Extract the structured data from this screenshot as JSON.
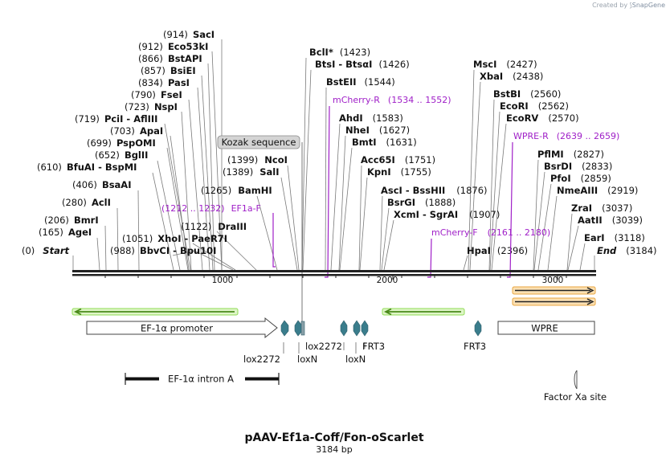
{
  "credit": {
    "prefix": "Created by",
    "brand": "SnapGene"
  },
  "plasmid": {
    "name": "pAAV-Ef1a-Coff/Fon-oScarlet",
    "length_label": "3184 bp"
  },
  "axis": {
    "ticks": [
      "1000",
      "2000",
      "3000"
    ]
  },
  "enzymes": [
    {
      "pos": "(0)",
      "name": "Start"
    },
    {
      "pos": "(165)",
      "name": "AgeI"
    },
    {
      "pos": "(206)",
      "name": "BmrI"
    },
    {
      "pos": "(280)",
      "name": "AclI"
    },
    {
      "pos": "(406)",
      "name": "BsaAI"
    },
    {
      "pos": "(610)",
      "name": "BfuAI",
      "name2": "BspMI"
    },
    {
      "pos": "(652)",
      "name": "BglII"
    },
    {
      "pos": "(699)",
      "name": "PspOMI"
    },
    {
      "pos": "(703)",
      "name": "ApaI"
    },
    {
      "pos": "(719)",
      "name": "PciI",
      "name2": "AflIII"
    },
    {
      "pos": "(723)",
      "name": "NspI"
    },
    {
      "pos": "(790)",
      "name": "FseI"
    },
    {
      "pos": "(834)",
      "name": "PasI"
    },
    {
      "pos": "(857)",
      "name": "BsiEI"
    },
    {
      "pos": "(866)",
      "name": "BstAPI"
    },
    {
      "pos": "(912)",
      "name": "Eco53kI"
    },
    {
      "pos": "(914)",
      "name": "SacI"
    },
    {
      "pos": "(988)",
      "name": "BbvCI",
      "name2": "Bpu10I"
    },
    {
      "pos": "(1051)",
      "name": "XhoI",
      "name2": "PaeR7I"
    },
    {
      "pos": "(1122)",
      "name": "DraIII"
    },
    {
      "pos": "(1265)",
      "name": "BamHI"
    },
    {
      "pos": "(1389)",
      "name": "SalI"
    },
    {
      "pos": "(1399)",
      "name": "NcoI"
    },
    {
      "pos": "(1423)",
      "name": "BclI",
      "mark": "*"
    },
    {
      "pos": "(1426)",
      "name": "BtsI",
      "name2": "BtsαI"
    },
    {
      "pos": "(1544)",
      "name": "BstEII"
    },
    {
      "pos": "(1583)",
      "name": "AhdI"
    },
    {
      "pos": "(1627)",
      "name": "NheI"
    },
    {
      "pos": "(1631)",
      "name": "BmtI"
    },
    {
      "pos": "(1751)",
      "name": "Acc65I"
    },
    {
      "pos": "(1755)",
      "name": "KpnI"
    },
    {
      "pos": "(1876)",
      "name": "AscI",
      "name2": "BssHII"
    },
    {
      "pos": "(1888)",
      "name": "BsrGI"
    },
    {
      "pos": "(1907)",
      "name": "XcmI",
      "name2": "SgrAI"
    },
    {
      "pos": "(2396)",
      "name": "HpaI"
    },
    {
      "pos": "(2427)",
      "name": "MscI"
    },
    {
      "pos": "(2438)",
      "name": "XbaI"
    },
    {
      "pos": "(2560)",
      "name": "BstBI"
    },
    {
      "pos": "(2562)",
      "name": "EcoRI"
    },
    {
      "pos": "(2570)",
      "name": "EcoRV"
    },
    {
      "pos": "(2827)",
      "name": "PflMI"
    },
    {
      "pos": "(2833)",
      "name": "BsrDI"
    },
    {
      "pos": "(2859)",
      "name": "PfoI"
    },
    {
      "pos": "(2919)",
      "name": "NmeAIII"
    },
    {
      "pos": "(3037)",
      "name": "ZraI"
    },
    {
      "pos": "(3039)",
      "name": "AatII"
    },
    {
      "pos": "(3118)",
      "name": "EarI"
    },
    {
      "pos": "(3184)",
      "name": "End"
    }
  ],
  "primers": [
    {
      "name": "mCherry-R",
      "range": "(1534 .. 1552)"
    },
    {
      "name": "WPRE-R",
      "range": "(2639 .. 2659)"
    },
    {
      "name": "EF1a-F",
      "range": "(1212 .. 1232)"
    },
    {
      "name": "mCherry-F",
      "range": "(2161 .. 2180)"
    }
  ],
  "features": {
    "kozak": "Kozak sequence",
    "promoter": "EF-1α promoter",
    "wpre": "WPRE",
    "intron": "EF-1α intron A",
    "factor_xa": "Factor Xa site",
    "sites": [
      "lox2272",
      "loxN",
      "lox2272",
      "loxN",
      "FRT3",
      "FRT3"
    ]
  },
  "colors": {
    "primer": "#a020c8",
    "orf": "#6fcf3a",
    "site": "#3a7d8c",
    "orange": "#e8a640"
  }
}
